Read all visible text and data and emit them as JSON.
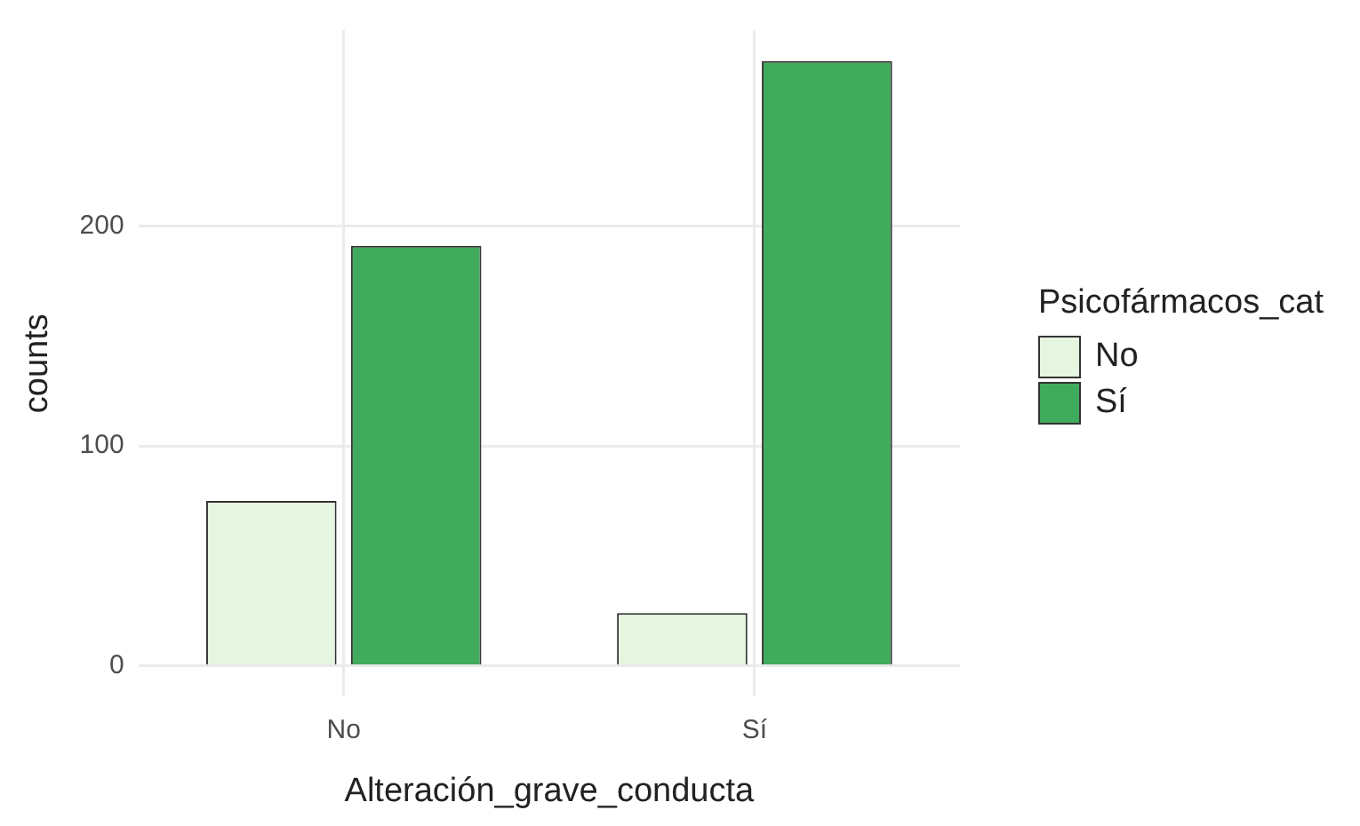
{
  "chart_data": {
    "type": "bar",
    "xlabel": "Alteración_grave_conducta",
    "ylabel": "counts",
    "legend_title": "Psicofármacos_cat",
    "categories": [
      "No",
      "Sí"
    ],
    "series": [
      {
        "name": "No",
        "color": "#e5f5e0",
        "values": [
          75,
          24
        ]
      },
      {
        "name": "Sí",
        "color": "#41ab5d",
        "values": [
          191,
          275
        ]
      }
    ],
    "ylim": [
      -14,
      289
    ],
    "yticks": [
      0,
      100,
      200
    ],
    "grid": true,
    "legend": "right"
  }
}
